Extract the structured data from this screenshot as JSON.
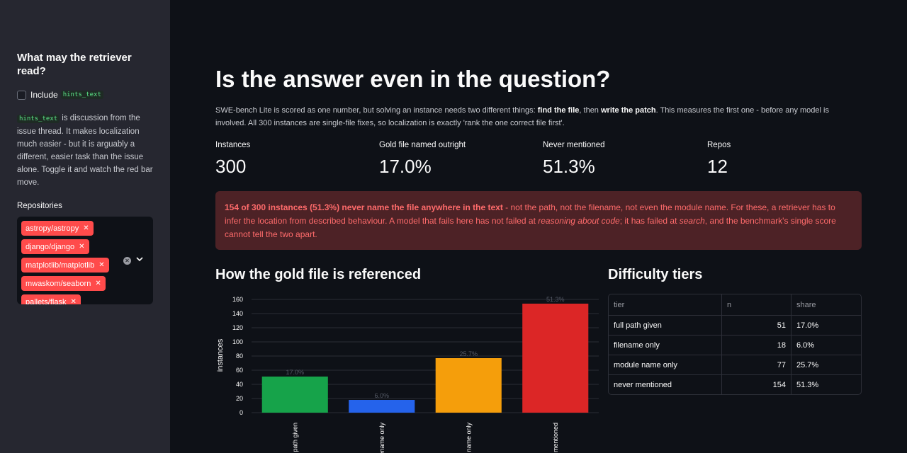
{
  "sidebar": {
    "title": "What may the retriever read?",
    "checkbox_label": "Include",
    "checkbox_code": "hints_text",
    "desc_code": "hints_text",
    "desc_text": "is discussion from the issue thread. It makes localization much easier - but it is arguably a different, easier task than the issue alone. Toggle it and watch the red bar move.",
    "repos_label": "Repositories",
    "repos": [
      "astropy/astropy",
      "django/django",
      "matplotlib/matplotlib",
      "mwaskom/seaborn",
      "pallets/flask"
    ]
  },
  "main": {
    "title": "Is the answer even in the question?",
    "intro_1": "SWE-bench Lite is scored as one number, but solving an instance needs two different things: ",
    "intro_b1": "find the file",
    "intro_2": ", then ",
    "intro_b2": "write the patch",
    "intro_3": ". This measures the first one - before any model is involved. All 300 instances are single-file fixes, so localization is exactly 'rank the one correct file first'.",
    "metrics": [
      {
        "label": "Instances",
        "value": "300"
      },
      {
        "label": "Gold file named outright",
        "value": "17.0%"
      },
      {
        "label": "Never mentioned",
        "value": "51.3%"
      },
      {
        "label": "Repos",
        "value": "12"
      }
    ],
    "alert_bold": "154 of 300 instances (51.3%) never name the file anywhere in the text",
    "alert_1": " - not the path, not the filename, not even the module name. For these, a retriever has to infer the location from described behaviour. A model that fails here has not failed at ",
    "alert_i1": "reasoning about code",
    "alert_2": "; it has failed at ",
    "alert_i2": "search",
    "alert_3": ", and the benchmark's single score cannot tell the two apart.",
    "chart_heading": "How the gold file is referenced",
    "table_heading": "Difficulty tiers"
  },
  "chart_data": {
    "type": "bar",
    "categories": [
      "full path given",
      "filename only",
      "module name only",
      "never mentioned"
    ],
    "values": [
      51,
      18,
      77,
      154
    ],
    "labels": [
      "17.0%",
      "6.0%",
      "25.7%",
      "51.3%"
    ],
    "colors": [
      "#16a34a",
      "#2563eb",
      "#f59e0b",
      "#dc2626"
    ],
    "ylabel": "instances",
    "xlabel": "",
    "yticks": [
      0,
      20,
      40,
      60,
      80,
      100,
      120,
      140,
      160
    ],
    "ylim": [
      0,
      162
    ],
    "grid": true
  },
  "table": {
    "headers": [
      "tier",
      "n",
      "share"
    ],
    "rows": [
      [
        "full path given",
        "51",
        "17.0%"
      ],
      [
        "filename only",
        "18",
        "6.0%"
      ],
      [
        "module name only",
        "77",
        "25.7%"
      ],
      [
        "never mentioned",
        "154",
        "51.3%"
      ]
    ]
  }
}
